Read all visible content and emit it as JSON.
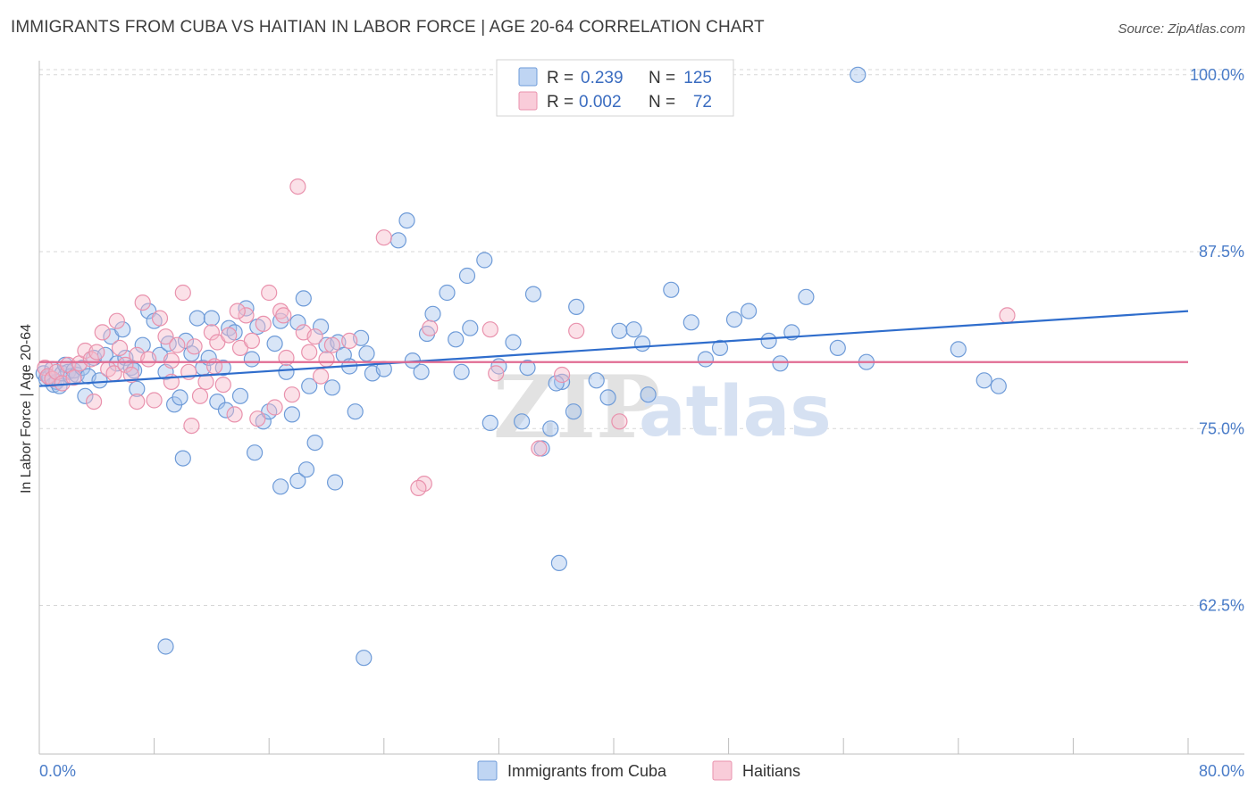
{
  "title": "IMMIGRANTS FROM CUBA VS HAITIAN IN LABOR FORCE | AGE 20-64 CORRELATION CHART",
  "source": "Source: ZipAtlas.com",
  "watermark": {
    "zip": "ZIP",
    "atlas": "atlas"
  },
  "colors": {
    "blue_fill": "#a9c6ee",
    "blue_stroke": "#6e9bd8",
    "blue_line": "#2f6dcc",
    "pink_fill": "#f6bccd",
    "pink_stroke": "#e992ad",
    "pink_line": "#e06b92",
    "axis_label": "#4a7cc8",
    "grid": "#d7d7d7"
  },
  "legend": {
    "rows": [
      {
        "r_label": "R =",
        "r_value": "0.239",
        "n_label": "N =",
        "n_value": "125"
      },
      {
        "r_label": "R =",
        "r_value": "0.002",
        "n_label": "N =",
        "n_value": "72"
      }
    ]
  },
  "chart_data": {
    "type": "scatter",
    "xlabel": "",
    "ylabel": "In Labor Force | Age 20-64",
    "xlim": [
      0,
      80
    ],
    "ylim": [
      52,
      101.5
    ],
    "x_tick_labels": [
      "0.0%",
      "80.0%"
    ],
    "y_ticks": [
      62.5,
      75.0,
      87.5,
      100.0
    ],
    "y_tick_labels": [
      "62.5%",
      "75.0%",
      "87.5%",
      "100.0%"
    ],
    "grid": "horizontal dashed",
    "legend_position": "bottom",
    "series": [
      {
        "name": "Immigrants from Cuba",
        "color": "#a9c6ee",
        "trend": {
          "x": [
            0,
            80
          ],
          "y": [
            78.0,
            83.3
          ]
        },
        "points": [
          [
            0.3,
            78.9
          ],
          [
            0.5,
            78.5
          ],
          [
            0.7,
            78.6
          ],
          [
            0.9,
            79.2
          ],
          [
            1.0,
            78.1
          ],
          [
            1.2,
            78.3
          ],
          [
            1.4,
            78.0
          ],
          [
            1.6,
            78.9
          ],
          [
            1.8,
            79.5
          ],
          [
            2.0,
            79.0
          ],
          [
            2.2,
            78.7
          ],
          [
            2.4,
            79.1
          ],
          [
            2.6,
            78.8
          ],
          [
            3.0,
            79.3
          ],
          [
            3.4,
            78.7
          ],
          [
            3.8,
            80.0
          ],
          [
            4.2,
            78.4
          ],
          [
            4.6,
            80.2
          ],
          [
            5.0,
            81.5
          ],
          [
            5.4,
            79.6
          ],
          [
            5.8,
            82.0
          ],
          [
            6.0,
            80.0
          ],
          [
            6.4,
            79.3
          ],
          [
            6.8,
            77.8
          ],
          [
            7.2,
            80.9
          ],
          [
            7.6,
            83.3
          ],
          [
            8.0,
            82.6
          ],
          [
            8.4,
            80.2
          ],
          [
            8.8,
            79.0
          ],
          [
            9.0,
            81.0
          ],
          [
            9.4,
            76.7
          ],
          [
            9.8,
            77.2
          ],
          [
            10.2,
            81.2
          ],
          [
            10.6,
            80.3
          ],
          [
            11.0,
            82.8
          ],
          [
            11.4,
            79.3
          ],
          [
            11.8,
            80.0
          ],
          [
            12.0,
            82.8
          ],
          [
            12.4,
            76.9
          ],
          [
            12.8,
            79.3
          ],
          [
            13.2,
            82.1
          ],
          [
            13.6,
            81.8
          ],
          [
            14.0,
            77.3
          ],
          [
            14.4,
            83.5
          ],
          [
            14.8,
            79.9
          ],
          [
            15.2,
            82.2
          ],
          [
            15.6,
            75.5
          ],
          [
            16.0,
            76.2
          ],
          [
            16.4,
            81.0
          ],
          [
            16.8,
            82.6
          ],
          [
            17.2,
            79.0
          ],
          [
            17.6,
            76.0
          ],
          [
            18.0,
            82.5
          ],
          [
            18.4,
            84.2
          ],
          [
            18.8,
            78.0
          ],
          [
            19.2,
            74.0
          ],
          [
            19.6,
            82.2
          ],
          [
            20.0,
            80.9
          ],
          [
            20.4,
            77.9
          ],
          [
            20.8,
            81.1
          ],
          [
            21.2,
            80.2
          ],
          [
            21.6,
            79.4
          ],
          [
            22.0,
            76.2
          ],
          [
            22.4,
            81.4
          ],
          [
            22.8,
            80.3
          ],
          [
            23.2,
            78.9
          ],
          [
            24.0,
            79.2
          ],
          [
            25.0,
            88.3
          ],
          [
            25.6,
            89.7
          ],
          [
            26.0,
            79.8
          ],
          [
            27.0,
            81.7
          ],
          [
            27.4,
            83.1
          ],
          [
            28.4,
            84.6
          ],
          [
            29.0,
            81.3
          ],
          [
            29.4,
            79.0
          ],
          [
            30.0,
            82.1
          ],
          [
            31.4,
            75.4
          ],
          [
            32.0,
            79.4
          ],
          [
            33.0,
            81.1
          ],
          [
            34.0,
            79.3
          ],
          [
            35.0,
            73.6
          ],
          [
            35.6,
            75.0
          ],
          [
            36.4,
            78.3
          ],
          [
            37.4,
            83.6
          ],
          [
            38.8,
            78.4
          ],
          [
            39.6,
            77.2
          ],
          [
            40.4,
            81.9
          ],
          [
            41.4,
            82.0
          ],
          [
            42.0,
            81.0
          ],
          [
            42.4,
            77.4
          ],
          [
            44.0,
            84.8
          ],
          [
            45.4,
            82.5
          ],
          [
            46.4,
            79.9
          ],
          [
            47.4,
            80.7
          ],
          [
            48.4,
            82.7
          ],
          [
            49.4,
            83.3
          ],
          [
            50.8,
            81.2
          ],
          [
            51.6,
            79.6
          ],
          [
            52.4,
            81.8
          ],
          [
            53.4,
            84.3
          ],
          [
            55.6,
            80.7
          ],
          [
            57.6,
            79.7
          ],
          [
            64.0,
            80.6
          ],
          [
            65.8,
            78.4
          ],
          [
            66.8,
            78.0
          ],
          [
            10.0,
            72.9
          ],
          [
            8.8,
            59.6
          ],
          [
            15.0,
            73.3
          ],
          [
            18.0,
            71.3
          ],
          [
            18.6,
            72.1
          ],
          [
            20.6,
            71.2
          ],
          [
            26.6,
            79.0
          ],
          [
            33.6,
            75.5
          ],
          [
            36.2,
            65.5
          ],
          [
            37.2,
            76.2
          ],
          [
            31.0,
            86.9
          ],
          [
            34.4,
            84.5
          ],
          [
            3.2,
            77.3
          ],
          [
            6.6,
            79.1
          ],
          [
            13.0,
            76.3
          ],
          [
            16.8,
            70.9
          ],
          [
            22.6,
            58.8
          ],
          [
            29.8,
            85.8
          ],
          [
            57.0,
            100.0
          ],
          [
            36.0,
            78.2
          ]
        ]
      },
      {
        "name": "Haitians",
        "color": "#f6bccd",
        "trend": {
          "x": [
            0,
            80
          ],
          "y": [
            79.7,
            79.7
          ]
        },
        "points": [
          [
            0.4,
            79.3
          ],
          [
            0.6,
            78.7
          ],
          [
            0.9,
            78.5
          ],
          [
            1.2,
            79.0
          ],
          [
            1.6,
            78.2
          ],
          [
            2.0,
            79.5
          ],
          [
            2.4,
            78.6
          ],
          [
            2.8,
            79.6
          ],
          [
            3.2,
            80.5
          ],
          [
            3.6,
            79.9
          ],
          [
            4.0,
            80.4
          ],
          [
            4.4,
            81.8
          ],
          [
            4.8,
            79.2
          ],
          [
            5.2,
            78.9
          ],
          [
            5.6,
            80.7
          ],
          [
            6.0,
            79.5
          ],
          [
            6.4,
            78.8
          ],
          [
            6.8,
            80.2
          ],
          [
            7.2,
            83.9
          ],
          [
            7.6,
            79.9
          ],
          [
            8.0,
            77.0
          ],
          [
            8.4,
            82.8
          ],
          [
            8.8,
            81.5
          ],
          [
            9.2,
            78.3
          ],
          [
            9.6,
            80.9
          ],
          [
            10.0,
            84.6
          ],
          [
            10.4,
            79.0
          ],
          [
            10.8,
            80.8
          ],
          [
            11.2,
            77.3
          ],
          [
            11.6,
            78.3
          ],
          [
            12.0,
            81.8
          ],
          [
            12.4,
            81.1
          ],
          [
            12.8,
            78.1
          ],
          [
            13.2,
            81.6
          ],
          [
            13.6,
            76.0
          ],
          [
            14.0,
            80.7
          ],
          [
            14.4,
            83.0
          ],
          [
            14.8,
            81.2
          ],
          [
            15.2,
            75.7
          ],
          [
            15.6,
            82.4
          ],
          [
            16.0,
            84.6
          ],
          [
            16.4,
            76.5
          ],
          [
            16.8,
            83.3
          ],
          [
            17.2,
            80.0
          ],
          [
            17.6,
            77.4
          ],
          [
            18.0,
            92.1
          ],
          [
            18.4,
            81.8
          ],
          [
            18.8,
            80.4
          ],
          [
            19.2,
            81.5
          ],
          [
            19.6,
            78.7
          ],
          [
            20.0,
            79.9
          ],
          [
            20.4,
            80.9
          ],
          [
            21.6,
            81.2
          ],
          [
            24.0,
            88.5
          ],
          [
            26.8,
            71.1
          ],
          [
            27.2,
            82.1
          ],
          [
            31.4,
            82.0
          ],
          [
            31.8,
            78.9
          ],
          [
            34.8,
            73.6
          ],
          [
            36.4,
            78.8
          ],
          [
            37.4,
            81.9
          ],
          [
            40.4,
            75.5
          ],
          [
            67.4,
            83.0
          ],
          [
            26.4,
            70.8
          ],
          [
            10.6,
            75.2
          ],
          [
            12.2,
            79.4
          ],
          [
            9.2,
            79.8
          ],
          [
            13.8,
            83.3
          ],
          [
            6.8,
            76.9
          ],
          [
            3.8,
            76.9
          ],
          [
            5.4,
            82.6
          ],
          [
            17.0,
            83.0
          ]
        ]
      }
    ]
  }
}
